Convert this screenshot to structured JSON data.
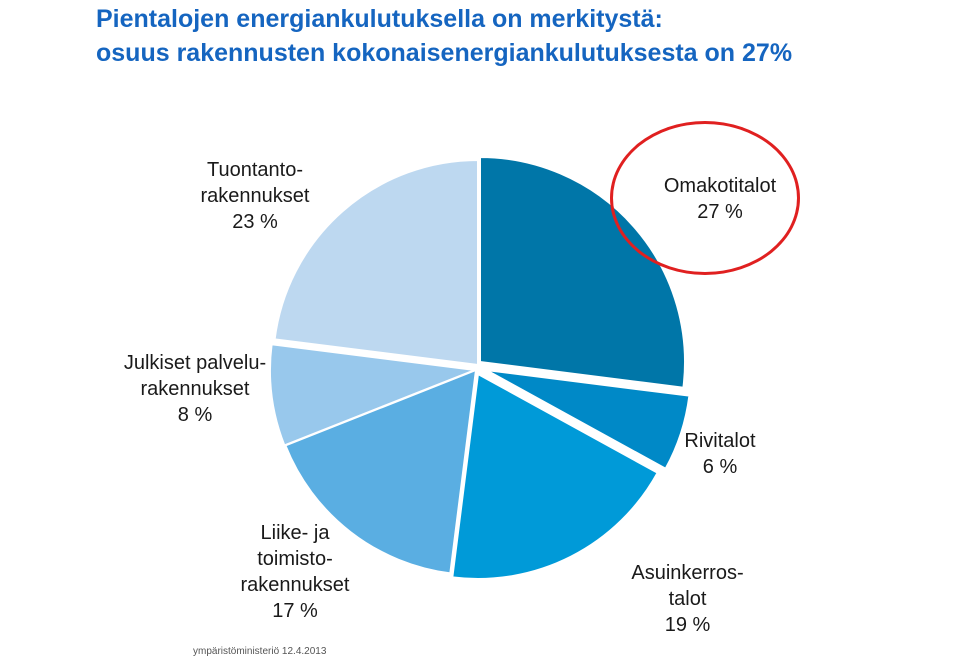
{
  "header": {
    "title_line1": "Pientalojen energiankulutuksella on merkitystä:",
    "title_line2": "osuus rakennusten kokonaisenergiankulutuksesta on 27%"
  },
  "chart_data": {
    "type": "pie",
    "slices": [
      {
        "lines": [
          "Omakotitalot",
          "27 %"
        ],
        "value": 27,
        "color": "#0076a8"
      },
      {
        "lines": [
          "Rivitalot",
          "6 %"
        ],
        "value": 6,
        "color": "#0089c7"
      },
      {
        "lines": [
          "Asuinkerros-",
          "talot",
          "19 %"
        ],
        "value": 19,
        "color": "#009ad8"
      },
      {
        "lines": [
          "Liike- ja",
          "toimisto-",
          "rakennukset",
          "17 %"
        ],
        "value": 17,
        "color": "#5aaee2"
      },
      {
        "lines": [
          "Julkiset palvelu-",
          "rakennukset",
          "8 %"
        ],
        "value": 8,
        "color": "#98c8ec"
      },
      {
        "lines": [
          "Tuontanto-",
          "rakennukset",
          "23 %"
        ],
        "value": 23,
        "color": "#bdd8f0"
      }
    ],
    "highlighted_slice": "Omakotitalot"
  },
  "footer": {
    "source": "ympäristöministeriö 12.4.2013"
  }
}
